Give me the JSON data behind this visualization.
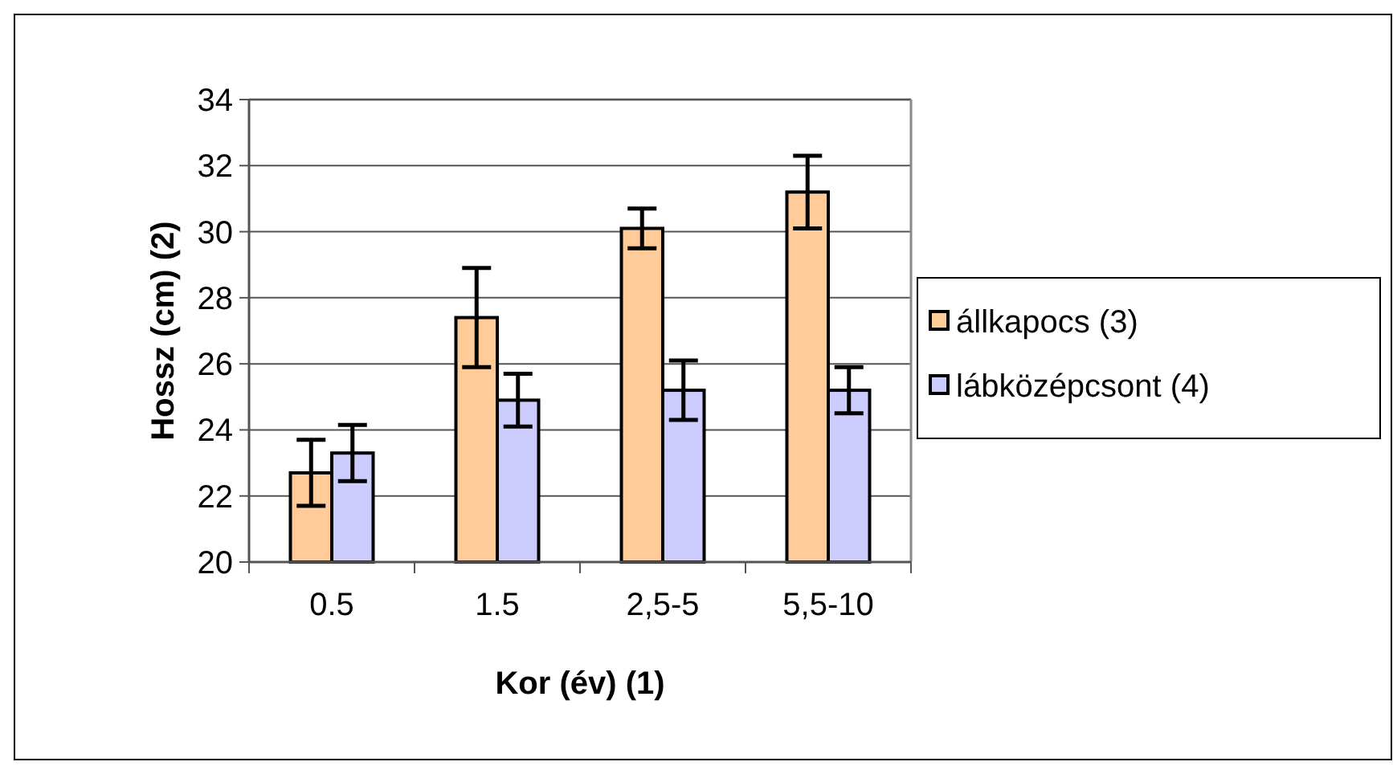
{
  "chart_data": {
    "type": "bar",
    "xlabel": "Kor (év) (1)",
    "ylabel": "Hossz (cm) (2)",
    "categories": [
      "0.5",
      "1.5",
      "2,5-5",
      "5,5-10"
    ],
    "series": [
      {
        "name": "állkapocs (3)",
        "color": "#ffcc99",
        "values": [
          22.7,
          27.4,
          30.1,
          31.2
        ],
        "errors": [
          1.0,
          1.5,
          0.6,
          1.1
        ]
      },
      {
        "name": "lábközépcsont (4)",
        "color": "#ccccff",
        "values": [
          23.3,
          24.9,
          25.2,
          25.2
        ],
        "errors": [
          0.85,
          0.8,
          0.9,
          0.7
        ]
      }
    ],
    "ylim": [
      20,
      34
    ],
    "yticks": [
      20,
      22,
      24,
      26,
      28,
      30,
      32,
      34
    ],
    "grid": "y",
    "legend": "right"
  }
}
